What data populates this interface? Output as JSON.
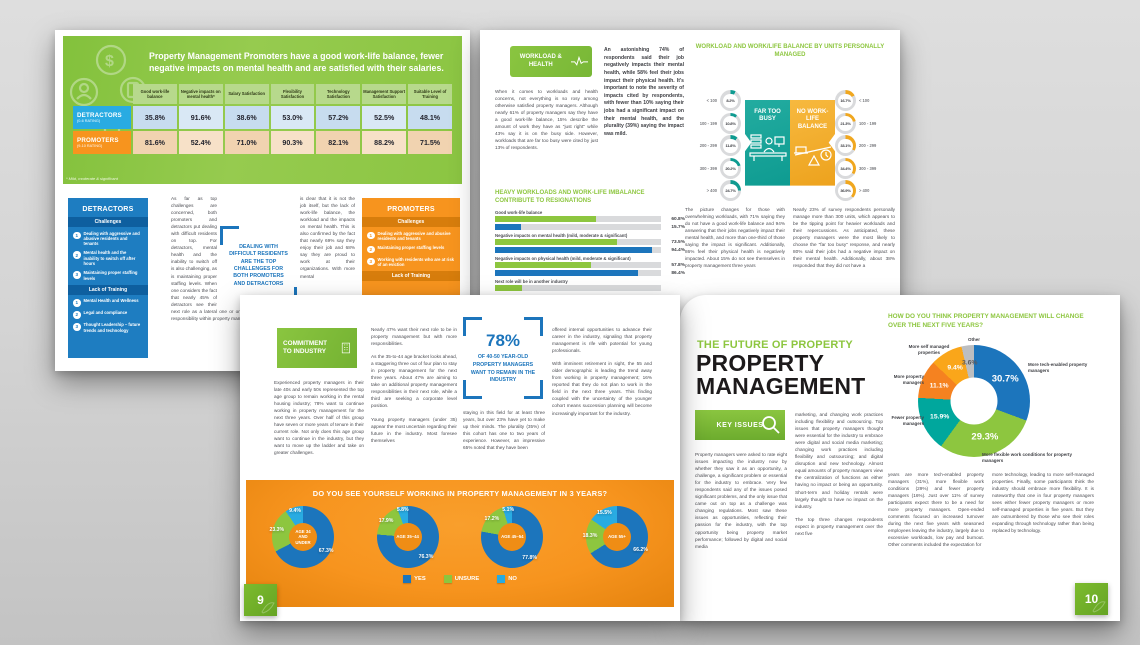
{
  "colors": {
    "green": "#8dc63f",
    "blue": "#1c75bc",
    "light_blue": "#29abe2",
    "orange": "#f7941e",
    "teal": "#0e9b91",
    "yellow": "#f0a71f",
    "gray": "#bcbec0"
  },
  "satisfaction": {
    "header_title": "Property Management Promoters have a good work-life balance, fewer negative impacts on mental health and are satisfied with their salaries.",
    "footnote": "* Mild, moderate & significant",
    "table": {
      "columns": [
        "Good work-life balance",
        "Negative impacts on mental health*",
        "Salary Satisfaction",
        "Flexibility Satisfaction",
        "Technology Satisfaction",
        "Management Support Satisfaction",
        "Suitable Level of Training"
      ],
      "rows": [
        {
          "label": "DETRACTORS",
          "sublabel": "(0-6 RATING)",
          "values": [
            "35.8%",
            "91.6%",
            "38.6%",
            "53.0%",
            "57.2%",
            "52.5%",
            "48.1%"
          ]
        },
        {
          "label": "PROMOTERS",
          "sublabel": "(9-10 RATING)",
          "values": [
            "81.6%",
            "52.4%",
            "71.0%",
            "90.3%",
            "82.1%",
            "88.2%",
            "71.5%"
          ]
        }
      ]
    },
    "detractors": {
      "title": "DETRACTORS",
      "sections": [
        {
          "heading": "Challenges",
          "items": [
            "Dealing with aggressive and abusive residents and tenants",
            "Mental health and the inability to switch off after hours",
            "Maintaining proper staffing levels"
          ]
        },
        {
          "heading": "Lack of Training",
          "items": [
            "Mental Health and Wellness",
            "Legal and compliance",
            "Thought Leadership – future trends and technology"
          ]
        }
      ]
    },
    "promoters": {
      "title": "PROMOTERS",
      "sections": [
        {
          "heading": "Challenges",
          "items": [
            "Dealing with aggressive and abusive residents and tenants",
            "Maintaining proper staffing levels",
            "Working with residents who are at risk of an eviction"
          ]
        },
        {
          "heading": "Lack of Training",
          "items": []
        }
      ]
    },
    "col1": "As far as top challenges are concerned, both promoters and detractors put dealing with difficult residents on top. For detractors, mental health and the inability to switch off is also challenging, as is maintaining proper staffing levels. When one considers the fact that nearly 45% of detractors see their next role as a lateral one or one with more responsibility within property management",
    "col2": "is clear that it is not the job itself, but the lack of work-life balance, the workload and the impacts on mental health. This is also confirmed by the fact that nearly 69% say they enjoy their job and 68% say they are proud to work at their organizations. With more mental",
    "callout": "DEALING WITH DIFFICULT RESIDENTS ARE THE TOP CHALLENGES FOR BOTH PROMOTERS AND DETRACTORS"
  },
  "workload": {
    "badge": "WORKLOAD & HEALTH",
    "intro": "When it comes to workloads and health concerns, not everything is so rosy among otherwise satisfied property managers. Although nearly 61% of property managers say they have a good work-life balance, 15% describe the amount of work they have as \"just right\" while 43% say it is on the busy side. However, workloads that are far too busy were cited by just 13% of respondents.",
    "highlight": "An astonishing 74% of respondents said their job negatively impacts their mental health, while 58% feel their jobs impact their physical health. It's important to note the severity of impacts cited by respondents, with fewer than 10% saying their jobs had a significant impact on their mental health, and the plurality (39%) saying the impact was mild.",
    "bar_chart": {
      "type": "bar",
      "title": "HEAVY WORKLOADS AND WORK-LIFE IMBALANCE CONTRIBUTE TO RESIGNATIONS",
      "series_colors": {
        "green": "#8dc63f",
        "blue": "#1c75bc"
      },
      "rows": [
        {
          "label": "Good work-life balance",
          "green": 60.8,
          "green_label": "60.8%",
          "blue": 15.7,
          "blue_label": "15.7%"
        },
        {
          "label": "Negative impacts on mental health (mild, moderate & significant)",
          "green": 73.5,
          "green_label": "73.5%",
          "blue": 94.4,
          "blue_label": "94.4%"
        },
        {
          "label": "Negative impacts on physical health (mild, moderate & significant)",
          "green": 57.8,
          "green_label": "57.8%",
          "blue": 86.4,
          "blue_label": "86.4%"
        },
        {
          "label": "Next role will be in another industry",
          "green": 16,
          "green_label": "",
          "blue": 0,
          "blue_label": ""
        }
      ]
    },
    "units_chart": {
      "type": "gauge",
      "title": "WORKLOAD AND WORK/LIFE BALANCE BY UNITS PERSONALLY MANAGED",
      "categories": [
        "< 100",
        "100 - 199",
        "200 - 299",
        "300 - 399",
        "> 400"
      ],
      "left": {
        "label": "FAR TOO BUSY",
        "color": "#0e9b91",
        "rows": [
          {
            "value": 8.2,
            "display": "8.2%"
          },
          {
            "value": 10.8,
            "display": "10.8%"
          },
          {
            "value": 11.8,
            "display": "11.8%"
          },
          {
            "value": 20.2,
            "display": "20.2%"
          },
          {
            "value": 24.7,
            "display": "24.7%"
          }
        ]
      },
      "right": {
        "label": "NO WORK-LIFE BALANCE",
        "color": "#f0a71f",
        "rows": [
          {
            "value": 16.7,
            "display": "16.7%"
          },
          {
            "value": 21.3,
            "display": "21.3%"
          },
          {
            "value": 33.1,
            "display": "33.1%"
          },
          {
            "value": 34.4,
            "display": "34.4%"
          },
          {
            "value": 36.9,
            "display": "36.9%"
          }
        ]
      }
    },
    "col_left": "The picture changes for those with overwhelming workloads, with 71% saying they do not have a good work-life balance and 94% answering that their jobs negatively impact their mental health, and more than one-third of those saying the impact is significant. Additionally, 86% feel their physical health is negatively impacted. About 15% do not see themselves in property management three years",
    "col_right": "Nearly 23% of survey respondents personally manage more than 300 units, which appears to be the tipping point for heavier workloads and their repercussions. As anticipated, these property managers were the most likely to choose the \"far too busy\" response, and nearly 80% said their jobs had a negative impact on their mental health. Additionally, about 38% responded that they did not have a"
  },
  "commitment": {
    "badge": "COMMITMENT TO INDUSTRY",
    "col1": "Experienced property managers in their late 40s and early 50s represented the top age group to remain working in the rental housing industry; 78% want to continue working in property management for the next three years. Over half of this group have seven or more years of tenure in their current role. Not only does this age group want to continue in the industry, but they want to move up the ladder and take on greater challenges.",
    "col2_p1": "Nearly 47% want their next role to be in property management but with more responsibilities.",
    "col2_p2": "As the 35-to-44 age bracket looks ahead, a staggering three out of four plan to stay in property management for the next three years. About 47% are aiming to take on additional property management responsibilities in their next role, while a third are seeking a corporate level position.",
    "col2_p3": "Young property managers (under 35) appear the most uncertain regarding their future in the industry. Most foresee themselves",
    "callout_value": "78%",
    "callout_text": "OF 40-50 YEAR-OLD PROPERTY MANAGERS WANT TO REMAIN IN THE INDUSTRY",
    "col3": "staying in this field for at least three years, but over 23% have yet to make up their minds. The plurality (35%) of this cohort has one to two years of experience. However, an impressive 65% noted that they have been",
    "col4_p1": "offered internal opportunities to advance their career in the industry, signaling that property management is rife with potential for young professionals.",
    "col4_p2": "With imminent retirement in sight, the 55 and older demographic is leading the trend away from working in property management; 16% reported that they do not plan to work in the field in the next three years. This finding coupled with the uncertainty of the younger cohort means succession planning will become increasingly important for the industry.",
    "pies": {
      "type": "pie",
      "title": "DO YOU SEE YOURSELF WORKING IN PROPERTY MANAGEMENT IN 3 YEARS?",
      "legend": [
        {
          "label": "YES",
          "color": "#1c75bc"
        },
        {
          "label": "UNSURE",
          "color": "#8dc63f"
        },
        {
          "label": "NO",
          "color": "#29abe2"
        }
      ],
      "charts": [
        {
          "center": "AGE 34 AND UNDER",
          "slices": [
            {
              "name": "YES",
              "value": 67.3,
              "display": "67.3%",
              "color": "#1c75bc"
            },
            {
              "name": "UNSURE",
              "value": 23.3,
              "display": "23.3%",
              "color": "#8dc63f"
            },
            {
              "name": "NO",
              "value": 9.4,
              "display": "9.4%",
              "color": "#29abe2"
            }
          ]
        },
        {
          "center": "AGE 35–44",
          "slices": [
            {
              "name": "YES",
              "value": 76.3,
              "display": "76.3%",
              "color": "#1c75bc"
            },
            {
              "name": "UNSURE",
              "value": 17.9,
              "display": "17.9%",
              "color": "#8dc63f"
            },
            {
              "name": "NO",
              "value": 5.8,
              "display": "5.8%",
              "color": "#29abe2"
            }
          ]
        },
        {
          "center": "AGE 45–54",
          "slices": [
            {
              "name": "YES",
              "value": 77.8,
              "display": "77.8%",
              "color": "#1c75bc"
            },
            {
              "name": "UNSURE",
              "value": 17.2,
              "display": "17.2%",
              "color": "#8dc63f"
            },
            {
              "name": "NO",
              "value": 5.1,
              "display": "5.1%",
              "color": "#29abe2"
            }
          ]
        },
        {
          "center": "AGE 55+",
          "slices": [
            {
              "name": "YES",
              "value": 66.2,
              "display": "66.2%",
              "color": "#1c75bc"
            },
            {
              "name": "UNSURE",
              "value": 18.3,
              "display": "18.3%",
              "color": "#8dc63f"
            },
            {
              "name": "NO",
              "value": 15.5,
              "display": "15.5%",
              "color": "#29abe2"
            }
          ]
        }
      ]
    },
    "page_number": "9"
  },
  "future": {
    "kicker": "THE FUTURE OF PROPERTY",
    "title_line1": "PROPERTY",
    "title_line2": "MANAGEMENT",
    "key_issues": "KEY ISSUES",
    "col1": "Property managers were asked to rate eight issues impacting the industry now by whether they saw it as an opportunity, a challenge, a significant problem or essential for the industry to embrace. Very few respondents said any of the issues posed significant problems, and the only issue that came out on top as a challenge was changing regulations. Most saw these issues as opportunities, reflecting their passion for the industry, with the top opportunity being property market performance; followed by digital and social media",
    "col2_p1": "marketing, and changing work practices including flexibility and outsourcing. Top issues that property managers thought were essential for the industry to embrace were digital and social media marketing; changing work practices including flexibility and outsourcing; and digital disruption and new technology. Almost equal amounts of property managers view the centralization of functions as either having no impact or being an opportunity. Short-term and holiday rentals were largely thought to have no impact on the industry.",
    "col2_p2": "The top three changes respondents expect in property management over the next five",
    "donut": {
      "type": "pie",
      "title": "HOW DO YOU THINK PROPERTY MANAGEMENT WILL CHANGE OVER THE NEXT FIVE YEARS?",
      "slices": [
        {
          "label": "More tech-enabled property managers",
          "value": 30.7,
          "display": "30.7%",
          "color": "#1c75bc"
        },
        {
          "label": "More flexible work conditions for property managers",
          "value": 29.3,
          "display": "29.3%",
          "color": "#8dc63f"
        },
        {
          "label": "Fewer property managers",
          "value": 15.9,
          "display": "15.9%",
          "color": "#00a79d"
        },
        {
          "label": "More property managers",
          "value": 11.1,
          "display": "11.1%",
          "color": "#f58220"
        },
        {
          "label": "More self managed properties",
          "value": 9.4,
          "display": "9.4%",
          "color": "#faa61a"
        },
        {
          "label": "Other",
          "value": 3.6,
          "display": "3.6%",
          "color": "#bcbec0",
          "text": "#57585c"
        }
      ]
    },
    "col3": "years are more tech-enabled property managers (31%), more flexible work conditions (29%) and fewer property managers (16%). Just over 11% of survey participants expect there to be a need for more property managers. Open-ended comments focused on increased turnover during the next five years with seasoned employees leaving the industry, largely due to excessive workloads, low pay and burnout. Other comments included the expectation for",
    "col4": "more technology, leading to more self-managed properties. Finally, some participants think the industry should embrace more flexibility. It is noteworthy that one in four property managers sees either fewer property managers or more self-managed properties in five years. But they are outnumbered by those who see their roles expanding through technology rather than being replaced by technology.",
    "page_number": "10"
  }
}
